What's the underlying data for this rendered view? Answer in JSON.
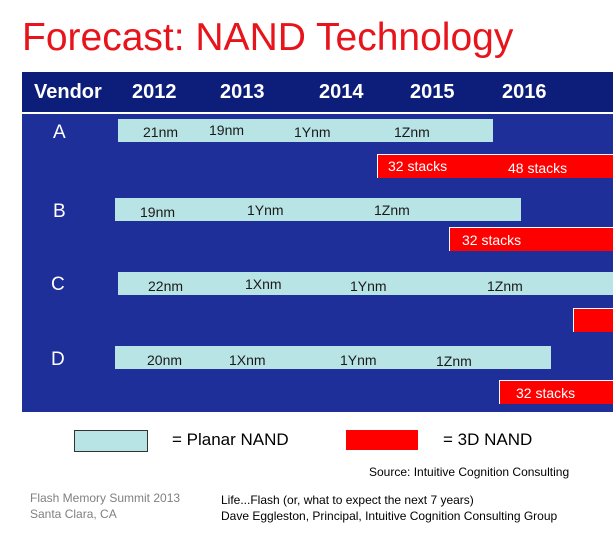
{
  "title": "Forecast: NAND Technology",
  "header": {
    "vendor": "Vendor",
    "years": [
      "2012",
      "2013",
      "2014",
      "2015",
      "2016"
    ]
  },
  "vendors": [
    {
      "name": "A",
      "planar": [
        "21nm",
        "19nm",
        "1Ynm",
        "1Znm"
      ],
      "threeD": [
        "32 stacks",
        "48 stacks"
      ]
    },
    {
      "name": "B",
      "planar": [
        "19nm",
        "1Ynm",
        "1Znm"
      ],
      "threeD": [
        "32 stacks"
      ]
    },
    {
      "name": "C",
      "planar": [
        "22nm",
        "1Xnm",
        "1Ynm",
        "1Znm"
      ],
      "threeD": []
    },
    {
      "name": "D",
      "planar": [
        "20nm",
        "1Xnm",
        "1Ynm",
        "1Znm"
      ],
      "threeD": [
        "32 stacks"
      ]
    }
  ],
  "legend": {
    "planar": "= Planar NAND",
    "threeD": "= 3D NAND"
  },
  "colors": {
    "planar": "#b9e4e6",
    "threeD": "#ff0000",
    "panel": "#1e2f9a",
    "title": "#e8141b"
  },
  "source": "Source: Intuitive Cognition Consulting",
  "footer": {
    "event": "Flash Memory Summit 2013",
    "location": "Santa Clara, CA",
    "talk": "Life...Flash (or, what to expect the next 7 years)",
    "speaker": "Dave Eggleston, Principal, Intuitive Cognition Consulting Group"
  }
}
